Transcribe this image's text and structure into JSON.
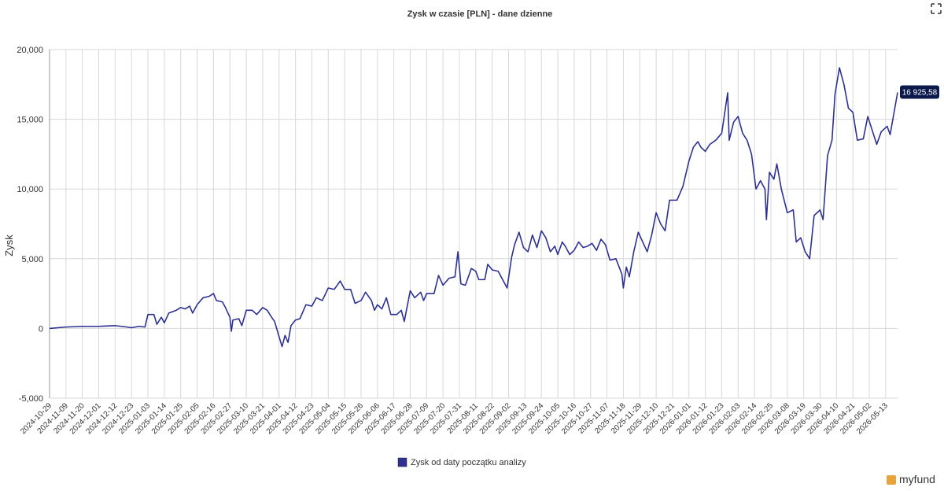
{
  "chart_data": {
    "type": "line",
    "title": "Zysk w czasie [PLN] - dane dzienne",
    "y_label": "Zysk",
    "logo": "myfund",
    "annotation": {
      "text": "16 925,58"
    },
    "xlim": [
      "2024-10-29",
      "2026-05-21"
    ],
    "ylim": [
      -5000,
      20000
    ],
    "yticks": [
      {
        "value": -5000,
        "label": "-5,000"
      },
      0,
      {
        "value": 5000,
        "label": "5,000"
      },
      {
        "value": 10000,
        "label": "10,000"
      },
      {
        "value": 15000,
        "label": "15,000"
      },
      {
        "value": 20000,
        "label": "20,000"
      }
    ],
    "xticks": [
      "2024-10-29",
      "2024-11-09",
      "2024-11-20",
      "2024-12-01",
      "2024-12-12",
      "2024-12-23",
      "2025-01-03",
      "2025-01-14",
      "2025-01-25",
      "2025-02-05",
      "2025-02-16",
      "2025-02-27",
      "2025-03-10",
      "2025-03-21",
      "2025-04-01",
      "2025-04-12",
      "2025-04-23",
      "2025-05-04",
      "2025-05-15",
      "2025-05-26",
      "2025-06-06",
      "2025-06-17",
      "2025-06-28",
      "2025-07-09",
      "2025-07-20",
      "2025-07-31",
      "2025-08-11",
      "2025-08-22",
      "2025-09-02",
      "2025-09-13",
      "2025-09-24",
      "2025-10-05",
      "2025-10-16",
      "2025-10-27",
      "2025-11-07",
      "2025-11-18",
      "2025-11-29",
      "2025-12-10",
      "2025-12-21",
      "2026-01-01",
      "2026-01-12",
      "2026-01-23",
      "2026-02-03",
      "2026-02-14",
      "2026-02-25",
      "2026-03-08",
      "2026-03-19",
      "2026-03-30",
      "2026-04-10",
      "2026-04-21",
      "2026-05-02",
      "2026-05-13"
    ],
    "grid": true,
    "x": [
      "2024-10-29",
      "2024-11-09",
      "2024-11-20",
      "2024-12-01",
      "2024-12-12",
      "2024-12-20",
      "2024-12-23",
      "2024-12-28",
      "2025-01-01",
      "2025-01-03",
      "2025-01-07",
      "2025-01-09",
      "2025-01-12",
      "2025-01-14",
      "2025-01-17",
      "2025-01-22",
      "2025-01-25",
      "2025-01-28",
      "2025-01-31",
      "2025-02-02",
      "2025-02-05",
      "2025-02-09",
      "2025-02-13",
      "2025-02-16",
      "2025-02-18",
      "2025-02-22",
      "2025-02-24",
      "2025-02-27",
      "2025-02-28",
      "2025-03-01",
      "2025-03-05",
      "2025-03-07",
      "2025-03-10",
      "2025-03-14",
      "2025-03-17",
      "2025-03-21",
      "2025-03-24",
      "2025-03-27",
      "2025-03-29",
      "2025-04-01",
      "2025-04-03",
      "2025-04-05",
      "2025-04-07",
      "2025-04-09",
      "2025-04-12",
      "2025-04-15",
      "2025-04-19",
      "2025-04-23",
      "2025-04-26",
      "2025-04-30",
      "2025-05-04",
      "2025-05-08",
      "2025-05-12",
      "2025-05-15",
      "2025-05-19",
      "2025-05-22",
      "2025-05-26",
      "2025-05-29",
      "2025-06-02",
      "2025-06-04",
      "2025-06-06",
      "2025-06-09",
      "2025-06-12",
      "2025-06-15",
      "2025-06-19",
      "2025-06-22",
      "2025-06-24",
      "2025-06-28",
      "2025-07-01",
      "2025-07-05",
      "2025-07-07",
      "2025-07-09",
      "2025-07-14",
      "2025-07-17",
      "2025-07-20",
      "2025-07-24",
      "2025-07-28",
      "2025-07-30",
      "2025-08-01",
      "2025-08-04",
      "2025-08-08",
      "2025-08-11",
      "2025-08-13",
      "2025-08-17",
      "2025-08-19",
      "2025-08-22",
      "2025-08-26",
      "2025-08-29",
      "2025-09-01",
      "2025-09-04",
      "2025-09-06",
      "2025-09-09",
      "2025-09-12",
      "2025-09-15",
      "2025-09-18",
      "2025-09-21",
      "2025-09-24",
      "2025-09-27",
      "2025-09-30",
      "2025-10-03",
      "2025-10-05",
      "2025-10-08",
      "2025-10-10",
      "2025-10-13",
      "2025-10-16",
      "2025-10-19",
      "2025-10-22",
      "2025-10-25",
      "2025-10-28",
      "2025-10-31",
      "2025-11-03",
      "2025-11-06",
      "2025-11-09",
      "2025-11-13",
      "2025-11-17",
      "2025-11-18",
      "2025-11-20",
      "2025-11-22",
      "2025-11-25",
      "2025-11-28",
      "2025-12-01",
      "2025-12-04",
      "2025-12-07",
      "2025-12-10",
      "2025-12-13",
      "2025-12-16",
      "2025-12-19",
      "2025-12-24",
      "2025-12-28",
      "2026-01-01",
      "2026-01-04",
      "2026-01-07",
      "2026-01-09",
      "2026-01-12",
      "2026-01-15",
      "2026-01-19",
      "2026-01-23",
      "2026-01-27",
      "2026-01-28",
      "2026-01-31",
      "2026-02-03",
      "2026-02-06",
      "2026-02-09",
      "2026-02-12",
      "2026-02-15",
      "2026-02-18",
      "2026-02-21",
      "2026-02-22",
      "2026-02-24",
      "2026-02-27",
      "2026-03-01",
      "2026-03-04",
      "2026-03-08",
      "2026-03-12",
      "2026-03-14",
      "2026-03-17",
      "2026-03-20",
      "2026-03-23",
      "2026-03-26",
      "2026-03-30",
      "2026-04-01",
      "2026-04-04",
      "2026-04-07",
      "2026-04-09",
      "2026-04-12",
      "2026-04-15",
      "2026-04-18",
      "2026-04-21",
      "2026-04-24",
      "2026-04-28",
      "2026-05-01",
      "2026-05-04",
      "2026-05-07",
      "2026-05-10",
      "2026-05-14",
      "2026-05-16",
      "2026-05-21"
    ],
    "series": [
      {
        "name": "Zysk od daty początku analizy",
        "color": "#2e3192",
        "values": [
          0,
          100,
          150,
          150,
          200,
          100,
          50,
          150,
          100,
          1000,
          1000,
          300,
          800,
          400,
          1100,
          1300,
          1500,
          1400,
          1600,
          1100,
          1700,
          2200,
          2300,
          2500,
          2000,
          1900,
          1500,
          800,
          -200,
          600,
          700,
          200,
          1300,
          1300,
          1000,
          1500,
          1300,
          800,
          500,
          -600,
          -1300,
          -500,
          -1000,
          200,
          600,
          700,
          1700,
          1600,
          2200,
          2000,
          2900,
          2800,
          3400,
          2800,
          2800,
          1800,
          2000,
          2600,
          2000,
          1300,
          1700,
          1400,
          2200,
          1000,
          1000,
          1300,
          500,
          2700,
          2200,
          2600,
          2000,
          2500,
          2500,
          3800,
          3100,
          3600,
          3700,
          5500,
          3200,
          3100,
          4300,
          4100,
          3500,
          3500,
          4600,
          4200,
          4100,
          3500,
          2900,
          5100,
          6000,
          6900,
          5800,
          5500,
          6700,
          5800,
          7000,
          6500,
          5500,
          5900,
          5300,
          6200,
          5900,
          5300,
          5600,
          6200,
          5800,
          5900,
          6100,
          5600,
          6400,
          6000,
          4900,
          5000,
          3900,
          2900,
          4400,
          3700,
          5500,
          6900,
          6200,
          5500,
          6700,
          8300,
          7500,
          7000,
          9200,
          9200,
          10200,
          12000,
          13000,
          13400,
          13000,
          12700,
          13200,
          13500,
          14000,
          16900,
          13500,
          14800,
          15200,
          14000,
          13500,
          12500,
          10000,
          10600,
          10000,
          7800,
          11200,
          10700,
          11800,
          10000,
          8300,
          8500,
          6200,
          6500,
          5500,
          5000,
          8100,
          8500,
          7800,
          12400,
          13500,
          16800,
          18700,
          17500,
          15800,
          15500,
          13500,
          13600,
          15200,
          14200,
          13200,
          14100,
          14500,
          13900,
          16925.58
        ]
      }
    ]
  }
}
